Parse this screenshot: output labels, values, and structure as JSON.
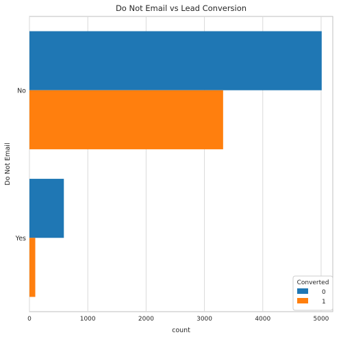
{
  "chart_data": {
    "type": "bar",
    "orientation": "horizontal",
    "title": "Do Not Email vs Lead Conversion",
    "xlabel": "count",
    "ylabel": "Do Not Email",
    "categories": [
      "No",
      "Yes"
    ],
    "series": [
      {
        "name": "0",
        "color": "#1f77b4",
        "values": [
          5010,
          590
        ]
      },
      {
        "name": "1",
        "color": "#ff7f0e",
        "values": [
          3320,
          100
        ]
      }
    ],
    "xlim": [
      0,
      5200
    ],
    "xticks": [
      0,
      1000,
      2000,
      3000,
      4000,
      5000
    ],
    "grid": true,
    "legend": {
      "title": "Converted",
      "position": "lower-right"
    }
  }
}
